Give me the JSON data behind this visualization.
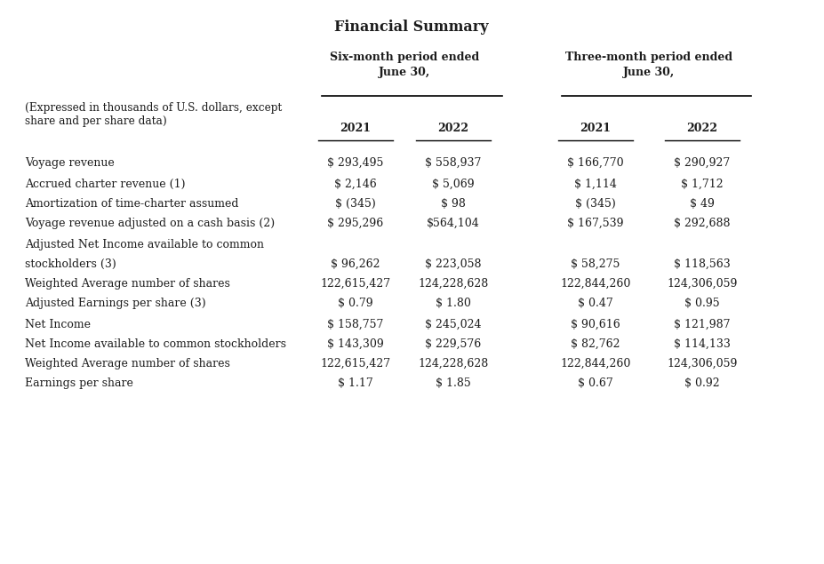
{
  "title": "Financial Summary",
  "col_header_group1": "Six-month period ended\nJune 30,",
  "col_header_group2": "Three-month period ended\nJune 30,",
  "sub_header_note_line1": "(Expressed in thousands of U.S. dollars, except",
  "sub_header_note_line2": "share and per share data)",
  "years": [
    "2021",
    "2022",
    "2021",
    "2022"
  ],
  "rows": [
    {
      "label": "Voyage revenue",
      "values": [
        "$ 293,495",
        "$ 558,937",
        "$ 166,770",
        "$ 290,927"
      ],
      "indent": 0,
      "spacer_before": 2
    },
    {
      "label": "Accrued charter revenue (1)",
      "values": [
        "$ 2,146",
        "$ 5,069",
        "$ 1,114",
        "$ 1,712"
      ],
      "indent": 0,
      "spacer_before": 2
    },
    {
      "label": "Amortization of time-charter assumed",
      "values": [
        "$ (345)",
        "$ 98",
        "$ (345)",
        "$ 49"
      ],
      "indent": 0,
      "spacer_before": 0
    },
    {
      "label": "Voyage revenue adjusted on a cash basis (2)",
      "values": [
        "$ 295,296",
        "$564,104",
        "$ 167,539",
        "$ 292,688"
      ],
      "indent": 0,
      "spacer_before": 0
    },
    {
      "label": "Adjusted Net Income available to common",
      "label2": "stockholders (3)",
      "values": [
        "$ 96,262",
        "$ 223,058",
        "$ 58,275",
        "$ 118,563"
      ],
      "indent": 0,
      "spacer_before": 2
    },
    {
      "label": "Weighted Average number of shares",
      "values": [
        "122,615,427",
        "124,228,628",
        "122,844,260",
        "124,306,059"
      ],
      "indent": 0,
      "spacer_before": 0
    },
    {
      "label": "Adjusted Earnings per share (3)",
      "values": [
        "$ 0.79",
        "$ 1.80",
        "$ 0.47",
        "$ 0.95"
      ],
      "indent": 0,
      "spacer_before": 0
    },
    {
      "label": "Net Income",
      "values": [
        "$ 158,757",
        "$ 245,024",
        "$ 90,616",
        "$ 121,987"
      ],
      "indent": 0,
      "spacer_before": 2
    },
    {
      "label": "Net Income available to common stockholders",
      "values": [
        "$ 143,309",
        "$ 229,576",
        "$ 82,762",
        "$ 114,133"
      ],
      "indent": 0,
      "spacer_before": 0
    },
    {
      "label": "Weighted Average number of shares",
      "values": [
        "122,615,427",
        "124,228,628",
        "122,844,260",
        "124,306,059"
      ],
      "indent": 0,
      "spacer_before": 0
    },
    {
      "label": "Earnings per share",
      "values": [
        "$ 1.17",
        "$ 1.85",
        "$ 0.67",
        "$ 0.92"
      ],
      "indent": 0,
      "spacer_before": 0
    }
  ],
  "bg_color": "#ffffff",
  "text_color": "#1c1c1c",
  "font_size": 9.0,
  "title_font_size": 11.5
}
